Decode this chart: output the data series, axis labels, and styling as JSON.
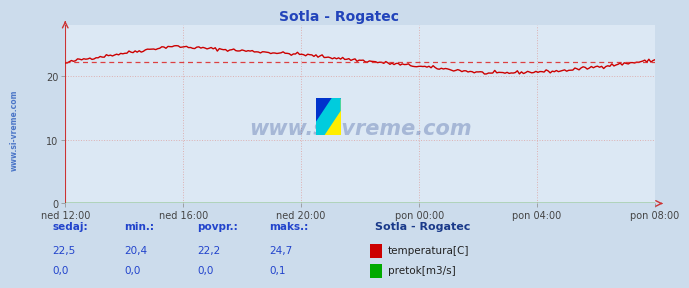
{
  "title": "Sotla - Rogatec",
  "bg_color": "#ccdcec",
  "plot_bg_color": "#dce8f4",
  "grid_color": "#ddaaaa",
  "x_labels": [
    "ned 12:00",
    "ned 16:00",
    "ned 20:00",
    "pon 00:00",
    "pon 04:00",
    "pon 08:00"
  ],
  "ylim": [
    0,
    28
  ],
  "yticks": [
    0,
    10,
    20
  ],
  "avg_line": 22.2,
  "avg_line_color": "#dd2222",
  "temp_color": "#cc0000",
  "flow_color": "#00aa00",
  "label_color": "#2244cc",
  "title_color": "#2244bb",
  "watermark": "www.si-vreme.com",
  "watermark_color": "#1a3a8a",
  "legend_title": "Sotla - Rogatec",
  "legend_title_color": "#1a3a8a",
  "sidebar_text_color": "#2255bb"
}
